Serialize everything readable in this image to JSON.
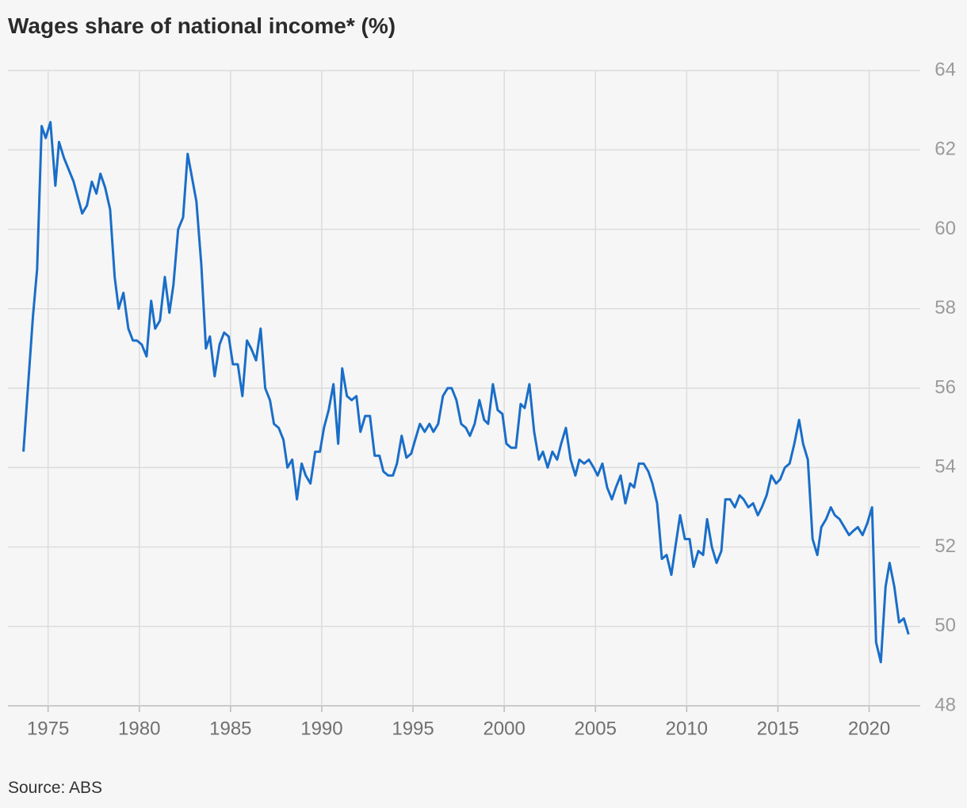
{
  "chart_data": {
    "type": "line",
    "title": "Wages share of national income* (%)",
    "source": "Source: ABS",
    "xlim": [
      1972.8,
      2022.8
    ],
    "xticks": [
      1975,
      1980,
      1985,
      1990,
      1995,
      2000,
      2005,
      2010,
      2015,
      2020
    ],
    "ylim": [
      48,
      64
    ],
    "yticks": [
      48,
      50,
      52,
      54,
      56,
      58,
      60,
      62,
      64
    ],
    "grid": true,
    "x": [
      1973.65,
      1974.17,
      1974.4,
      1974.65,
      1974.87,
      1975.13,
      1975.4,
      1975.6,
      1975.87,
      1976.4,
      1976.87,
      1977.13,
      1977.4,
      1977.65,
      1977.87,
      1978.13,
      1978.4,
      1978.65,
      1978.87,
      1979.13,
      1979.4,
      1979.65,
      1979.87,
      1980.13,
      1980.4,
      1980.65,
      1980.87,
      1981.13,
      1981.4,
      1981.65,
      1981.87,
      1982.13,
      1982.4,
      1982.65,
      1983.13,
      1983.4,
      1983.65,
      1983.87,
      1984.13,
      1984.4,
      1984.65,
      1984.9,
      1985.13,
      1985.4,
      1985.65,
      1985.9,
      1986.13,
      1986.4,
      1986.65,
      1986.9,
      1987.16,
      1987.38,
      1987.64,
      1987.9,
      1988.12,
      1988.38,
      1988.64,
      1988.9,
      1989.12,
      1989.38,
      1989.64,
      1989.9,
      1990.12,
      1990.38,
      1990.64,
      1990.9,
      1991.12,
      1991.38,
      1991.64,
      1991.9,
      1992.12,
      1992.38,
      1992.64,
      1992.9,
      1993.16,
      1993.38,
      1993.64,
      1993.9,
      1994.12,
      1994.38,
      1994.64,
      1994.9,
      1995.12,
      1995.38,
      1995.64,
      1995.9,
      1996.12,
      1996.38,
      1996.64,
      1996.9,
      1997.12,
      1997.38,
      1997.64,
      1997.9,
      1998.12,
      1998.38,
      1998.64,
      1998.9,
      1999.12,
      1999.38,
      1999.64,
      1999.9,
      2000.12,
      2000.38,
      2000.64,
      2000.9,
      2001.12,
      2001.38,
      2001.64,
      2001.9,
      2002.12,
      2002.38,
      2002.64,
      2002.9,
      2003.12,
      2003.38,
      2003.64,
      2003.9,
      2004.12,
      2004.38,
      2004.64,
      2004.9,
      2005.12,
      2005.38,
      2005.64,
      2005.9,
      2006.12,
      2006.38,
      2006.64,
      2006.9,
      2007.12,
      2007.38,
      2007.64,
      2007.9,
      2008.12,
      2008.38,
      2008.64,
      2008.9,
      2009.16,
      2009.38,
      2009.64,
      2009.9,
      2010.16,
      2010.38,
      2010.64,
      2010.9,
      2011.12,
      2011.38,
      2011.64,
      2011.9,
      2012.12,
      2012.38,
      2012.64,
      2012.9,
      2013.12,
      2013.38,
      2013.64,
      2013.9,
      2014.12,
      2014.38,
      2014.64,
      2014.9,
      2015.12,
      2015.38,
      2015.64,
      2015.9,
      2016.16,
      2016.38,
      2016.64,
      2016.9,
      2017.16,
      2017.38,
      2017.64,
      2017.9,
      2018.12,
      2018.38,
      2018.64,
      2018.9,
      2019.12,
      2019.38,
      2019.64,
      2019.9,
      2020.16,
      2020.38,
      2020.64,
      2020.9,
      2021.12,
      2021.38,
      2021.64,
      2021.9,
      2022.16
    ],
    "series": [
      {
        "color": "#1a6ec8",
        "values": [
          54.4,
          57.8,
          59.0,
          62.6,
          62.3,
          62.7,
          61.1,
          62.2,
          61.8,
          61.2,
          60.4,
          60.6,
          61.2,
          60.9,
          61.4,
          61.05,
          60.5,
          58.8,
          58.0,
          58.4,
          57.5,
          57.2,
          57.2,
          57.1,
          56.8,
          58.2,
          57.5,
          57.7,
          58.8,
          57.9,
          58.6,
          60.0,
          60.3,
          61.9,
          60.7,
          59.1,
          57.0,
          57.3,
          56.3,
          57.1,
          57.4,
          57.3,
          56.6,
          56.6,
          55.8,
          57.2,
          57.0,
          56.7,
          57.5,
          56.0,
          55.7,
          55.1,
          55.0,
          54.7,
          54.0,
          54.2,
          53.2,
          54.1,
          53.8,
          53.6,
          54.4,
          54.4,
          55.0,
          55.45,
          56.1,
          54.6,
          56.5,
          55.8,
          55.7,
          55.8,
          54.9,
          55.3,
          55.3,
          54.3,
          54.3,
          53.9,
          53.8,
          53.8,
          54.1,
          54.8,
          54.25,
          54.35,
          54.7,
          55.1,
          54.9,
          55.1,
          54.9,
          55.1,
          55.8,
          56.0,
          56.0,
          55.7,
          55.1,
          55.0,
          54.8,
          55.1,
          55.7,
          55.2,
          55.1,
          56.1,
          55.45,
          55.35,
          54.6,
          54.5,
          54.5,
          55.6,
          55.5,
          56.1,
          54.9,
          54.2,
          54.4,
          54.0,
          54.4,
          54.2,
          54.6,
          55.0,
          54.2,
          53.8,
          54.2,
          54.1,
          54.2,
          54.0,
          53.8,
          54.1,
          53.5,
          53.2,
          53.5,
          53.8,
          53.1,
          53.6,
          53.5,
          54.1,
          54.1,
          53.9,
          53.6,
          53.1,
          51.7,
          51.8,
          51.3,
          52.0,
          52.8,
          52.2,
          52.2,
          51.5,
          51.9,
          51.8,
          52.7,
          52.0,
          51.6,
          51.9,
          53.2,
          53.2,
          53.0,
          53.3,
          53.2,
          53.0,
          53.1,
          52.8,
          53.0,
          53.3,
          53.8,
          53.6,
          53.7,
          54.0,
          54.1,
          54.6,
          55.2,
          54.6,
          54.2,
          52.2,
          51.8,
          52.5,
          52.7,
          53.0,
          52.8,
          52.7,
          52.5,
          52.3,
          52.4,
          52.5,
          52.3,
          52.6,
          53.0,
          49.6,
          49.1,
          51.0,
          51.6,
          51.0,
          50.1,
          50.2,
          49.8
        ]
      }
    ]
  }
}
